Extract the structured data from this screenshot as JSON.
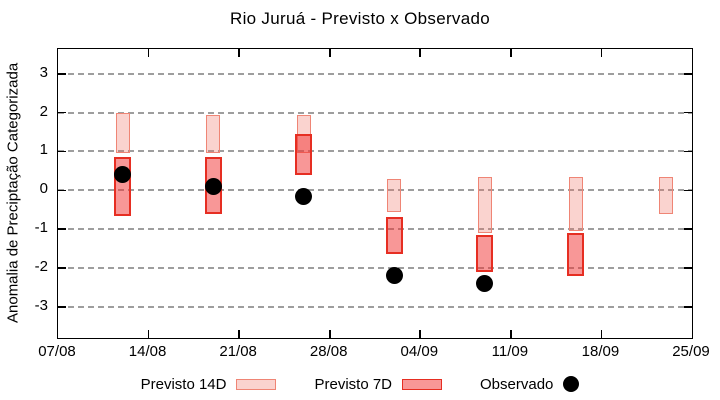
{
  "title": "Rio Juruá - Previsto x Observado",
  "chart_data": {
    "type": "bar",
    "subtype": "floating-range-bars-with-scatter",
    "title": "Rio Juruá - Previsto x Observado",
    "xlabel": "",
    "ylabel": "Anomalia de Preciptação Categorizada",
    "ylim": [
      -3.8,
      3.65
    ],
    "yticks": [
      3,
      2,
      1,
      0,
      -1,
      -2,
      -3
    ],
    "xticks": [
      "07/08",
      "14/08",
      "21/08",
      "28/08",
      "04/09",
      "11/09",
      "18/09",
      "25/09"
    ],
    "xtick_days": [
      0,
      7,
      14,
      21,
      28,
      35,
      42,
      49
    ],
    "grid": "horizontal-dashed",
    "grid_color": "#9e9e9e",
    "legend_position": "bottom-outside",
    "series": [
      {
        "name": "Previsto 14D",
        "type": "range-bar",
        "fill": "rgba(238,110,95,0.30)",
        "border": "#ef8575",
        "points": [
          {
            "date": "12/08",
            "day": 5,
            "low": 0.95,
            "high": 2.0
          },
          {
            "date": "19/08",
            "day": 12,
            "low": 0.95,
            "high": 1.95
          },
          {
            "date": "26/08",
            "day": 19,
            "low": 0.95,
            "high": 1.95
          },
          {
            "date": "02/09",
            "day": 26,
            "low": -0.55,
            "high": 0.3
          },
          {
            "date": "09/09",
            "day": 33,
            "low": -1.1,
            "high": 0.35
          },
          {
            "date": "16/09",
            "day": 40,
            "low": -1.05,
            "high": 0.35
          },
          {
            "date": "23/09",
            "day": 47,
            "low": -0.6,
            "high": 0.35
          }
        ]
      },
      {
        "name": "Previsto 7D",
        "type": "range-bar",
        "fill": "rgba(242,48,48,0.50)",
        "border": "#e62e22",
        "points": [
          {
            "date": "12/08",
            "day": 5,
            "low": -0.65,
            "high": 0.85
          },
          {
            "date": "19/08",
            "day": 12,
            "low": -0.6,
            "high": 0.85
          },
          {
            "date": "26/08",
            "day": 19,
            "low": 0.4,
            "high": 1.45
          },
          {
            "date": "02/09",
            "day": 26,
            "low": -1.65,
            "high": -0.7
          },
          {
            "date": "09/09",
            "day": 33,
            "low": -2.1,
            "high": -1.15
          },
          {
            "date": "16/09",
            "day": 40,
            "low": -2.2,
            "high": -1.1
          }
        ]
      },
      {
        "name": "Observado",
        "type": "scatter",
        "color": "#000000",
        "points": [
          {
            "date": "12/08",
            "day": 5,
            "value": 0.4
          },
          {
            "date": "19/08",
            "day": 12,
            "value": 0.1
          },
          {
            "date": "26/08",
            "day": 19,
            "value": -0.15
          },
          {
            "date": "02/09",
            "day": 26,
            "value": -2.2
          },
          {
            "date": "09/09",
            "day": 33,
            "value": -2.4
          }
        ]
      }
    ]
  },
  "legend": {
    "items": [
      {
        "label": "Previsto 14D",
        "swatch": "pink-box"
      },
      {
        "label": "Previsto 7D",
        "swatch": "red-box"
      },
      {
        "label": "Observado",
        "swatch": "black-dot"
      }
    ]
  },
  "colors": {
    "forecast_14d_fill_on_white": "#fad3cf",
    "forecast_14d_border": "#ef8575",
    "forecast_7d_fill_on_white": "#f89797",
    "forecast_7d_border": "#e62e22",
    "overlap_fill_on_white": "#f56b66",
    "observed": "#000000",
    "axis": "#000000",
    "grid": "#9e9e9e",
    "background": "#ffffff"
  }
}
